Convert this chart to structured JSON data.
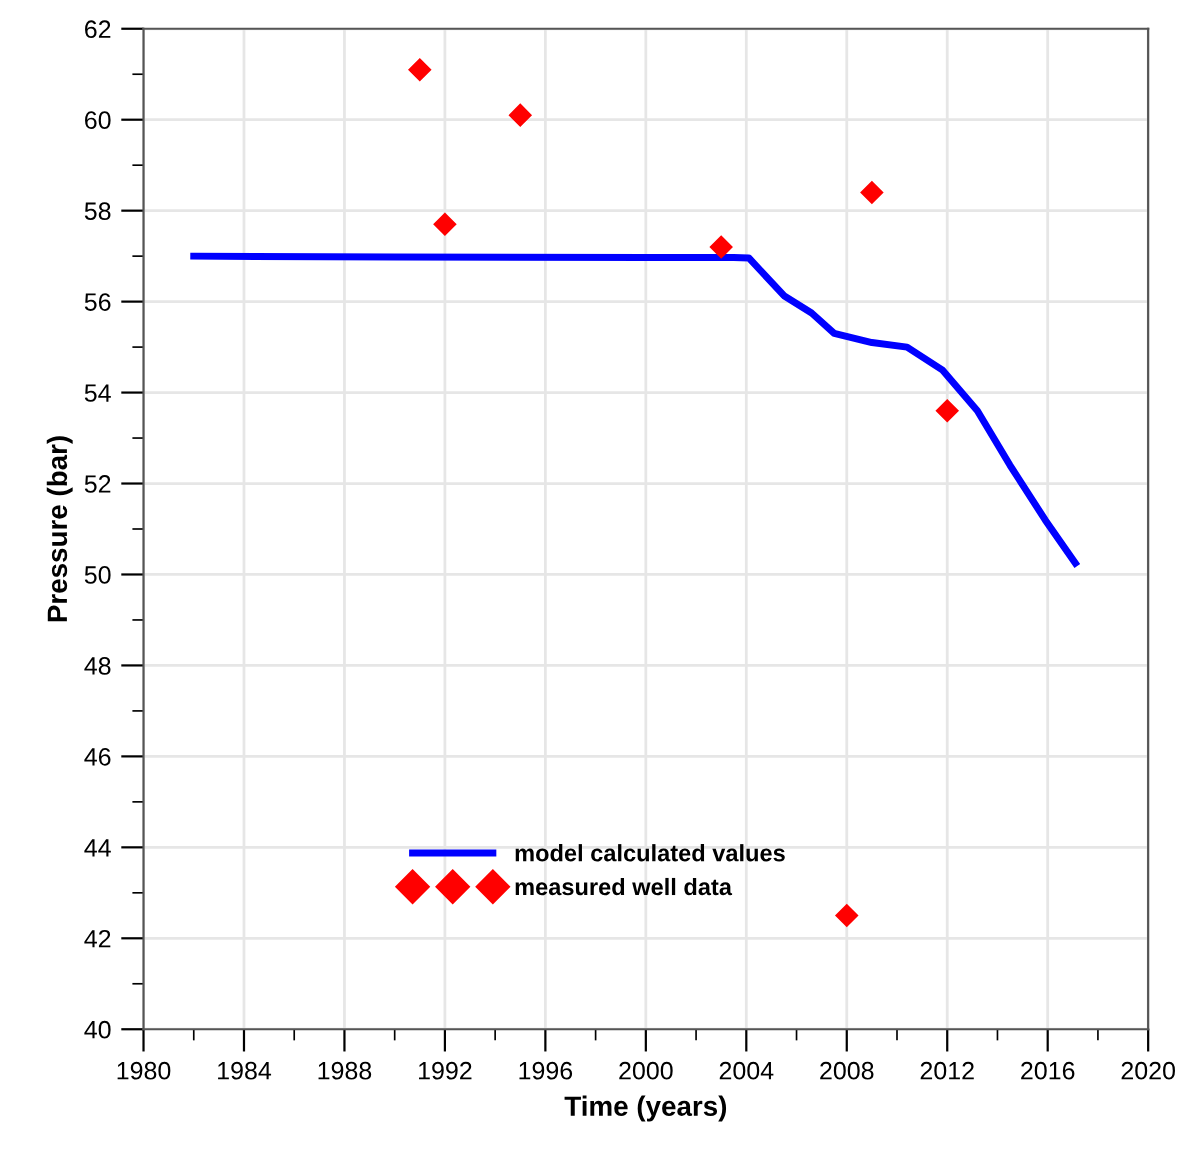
{
  "chart_data": {
    "type": "line",
    "xlabel": "Time (years)",
    "ylabel": "Pressure (bar)",
    "xlim": [
      1980,
      2020
    ],
    "xticks": [
      1980,
      1984,
      1988,
      1992,
      1996,
      2000,
      2004,
      2008,
      2012,
      2016,
      2020
    ],
    "ylim": [
      40,
      62
    ],
    "yticks": [
      40,
      42,
      44,
      46,
      48,
      50,
      52,
      54,
      56,
      58,
      60,
      62
    ],
    "grid": true,
    "legend": "bottom",
    "series": [
      {
        "name": "model calculated values",
        "type": "line",
        "color": "#0000ff",
        "marker": "none",
        "line_style": "solid",
        "x": [
          1982,
          1990,
          2000,
          2003.5,
          2004.1,
          2005.5,
          2006.6,
          2007.5,
          2009.0,
          2010.4,
          2011.8,
          2013.2,
          2014.5,
          2015.9,
          2017.1
        ],
        "values": [
          57.0,
          56.98,
          56.97,
          56.97,
          56.96,
          56.13,
          55.75,
          55.3,
          55.1,
          55.0,
          54.5,
          53.6,
          52.4,
          51.2,
          50.25
        ]
      },
      {
        "name": "measured well data",
        "type": "scatter",
        "color": "#ff0000",
        "marker": "diamond",
        "x": [
          1991,
          1992,
          1995,
          2003,
          2008,
          2009,
          2012
        ],
        "values": [
          61.1,
          57.7,
          60.1,
          57.2,
          42.5,
          58.4,
          53.6
        ]
      }
    ]
  }
}
